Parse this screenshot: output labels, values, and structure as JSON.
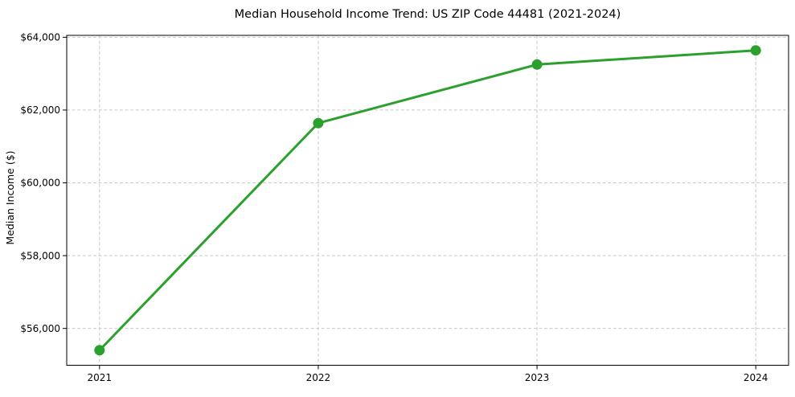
{
  "chart_data": {
    "type": "line",
    "title": "Median Household Income Trend: US ZIP Code 44481 (2021-2024)",
    "xlabel": "",
    "ylabel": "Median Income ($)",
    "x": [
      2021,
      2022,
      2023,
      2024
    ],
    "x_tick_labels": [
      "2021",
      "2022",
      "2023",
      "2024"
    ],
    "series": [
      {
        "values": [
          55400,
          61640,
          63250,
          63640
        ],
        "color": "#2ca02c",
        "marker": "circle"
      }
    ],
    "y_ticks": [
      56000,
      58000,
      60000,
      62000,
      64000
    ],
    "y_tick_labels": [
      "$56,000",
      "$58,000",
      "$60,000",
      "$62,000",
      "$64,000"
    ],
    "xlim": [
      2020.85,
      2024.15
    ],
    "ylim": [
      54988,
      64052
    ],
    "grid": true,
    "grid_style": "dashed",
    "grid_color": "#c9c9c9",
    "axis_color": "#000000",
    "background_color": "#ffffff",
    "legend": "none"
  }
}
